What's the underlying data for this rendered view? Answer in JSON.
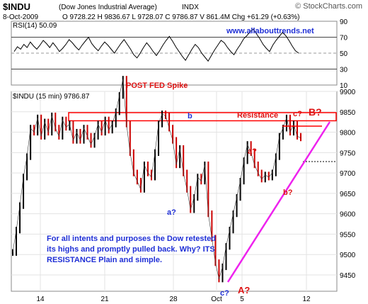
{
  "header": {
    "symbol": "$INDU",
    "name": "(Dow Jones Industrial Average)",
    "exchange": "INDX",
    "brand": "© StockCharts.com",
    "date": "8-Oct-2009",
    "ohlc": "O 9728.22  H 9836.67  L 9728.07  C 9786.87  V 861.4M  Chg +61.29 (+0.63%)",
    "url": "www.allabouttrends.net"
  },
  "rsi_panel": {
    "label": "RSI(14) 50.09"
  },
  "price_panel": {
    "label": "$INDU (15 min) 9786.87"
  },
  "annotations": {
    "post_fed": "POST FED Spike",
    "resistance": "Resistance",
    "c_wave": "c?",
    "b_big": "B?",
    "b_small": "b",
    "a_small": "a?",
    "a_red": "a?",
    "b_red": "b?",
    "c_bottom": "c?",
    "a_big": "A?",
    "note": "For all intents and purposes the Dow retested its highs and promptly pulled back. Why? ITS RESISTANCE Plain and simple."
  },
  "colors": {
    "up": "#000000",
    "down": "#cc0000",
    "resistance": "#ff0000",
    "trend": "#ee22ee",
    "annotation": "#1f2fd6"
  },
  "chart_data": [
    {
      "type": "line",
      "ylim": [
        10,
        90
      ],
      "yticks": [
        10,
        30,
        50,
        70,
        90
      ],
      "reference_lines": [
        30,
        50,
        70
      ],
      "series": [
        {
          "values": [
            52,
            58,
            55,
            61,
            57,
            64,
            59,
            55,
            60,
            66,
            62,
            57,
            63,
            58,
            52,
            56,
            61,
            67,
            63,
            58,
            54,
            60,
            65,
            70,
            62,
            57,
            53,
            59,
            64,
            60,
            55,
            50,
            56,
            62,
            67,
            61,
            55,
            48,
            44,
            50,
            57,
            63,
            58,
            52,
            47,
            53,
            60,
            66,
            71,
            65,
            58,
            52,
            46,
            41,
            48,
            55,
            61,
            57,
            50,
            45,
            40,
            47,
            54,
            60,
            66,
            63,
            57,
            52,
            48,
            55,
            61,
            68,
            72,
            77,
            80,
            74,
            68,
            61,
            56,
            52,
            60,
            66,
            71,
            76,
            72,
            66,
            59,
            53,
            50
          ]
        }
      ]
    },
    {
      "type": "line",
      "ylim": [
        9410,
        9900
      ],
      "yticks": [
        9450,
        9500,
        9550,
        9600,
        9650,
        9700,
        9750,
        9800,
        9850,
        9900
      ],
      "x_ticks": [
        "14",
        "21",
        "28",
        "Oct",
        "5",
        "12"
      ],
      "resistance_band": [
        9828,
        9848
      ],
      "dashed_level": 9728,
      "series": [
        {
          "values": [
            9505,
            9560,
            9620,
            9690,
            9740,
            9810,
            9800,
            9835,
            9790,
            9825,
            9800,
            9840,
            9810,
            9790,
            9830,
            9812,
            9820,
            9780,
            9800,
            9780,
            9810,
            9790,
            9770,
            9790,
            9820,
            9800,
            9830,
            9805,
            9820,
            9850,
            9890,
            9930,
            9820,
            9750,
            9700,
            9680,
            9660,
            9720,
            9700,
            9690,
            9750,
            9820,
            9845,
            9840,
            9810,
            9780,
            9720,
            9760,
            9700,
            9660,
            9610,
            9640,
            9690,
            9680,
            9720,
            9600,
            9540,
            9480,
            9440,
            9470,
            9520,
            9560,
            9600,
            9640,
            9680,
            9730,
            9770,
            9750,
            9720,
            9700,
            9685,
            9695,
            9690,
            9700,
            9740,
            9790,
            9810,
            9835,
            9800,
            9820,
            9790,
            9786
          ]
        }
      ]
    }
  ]
}
